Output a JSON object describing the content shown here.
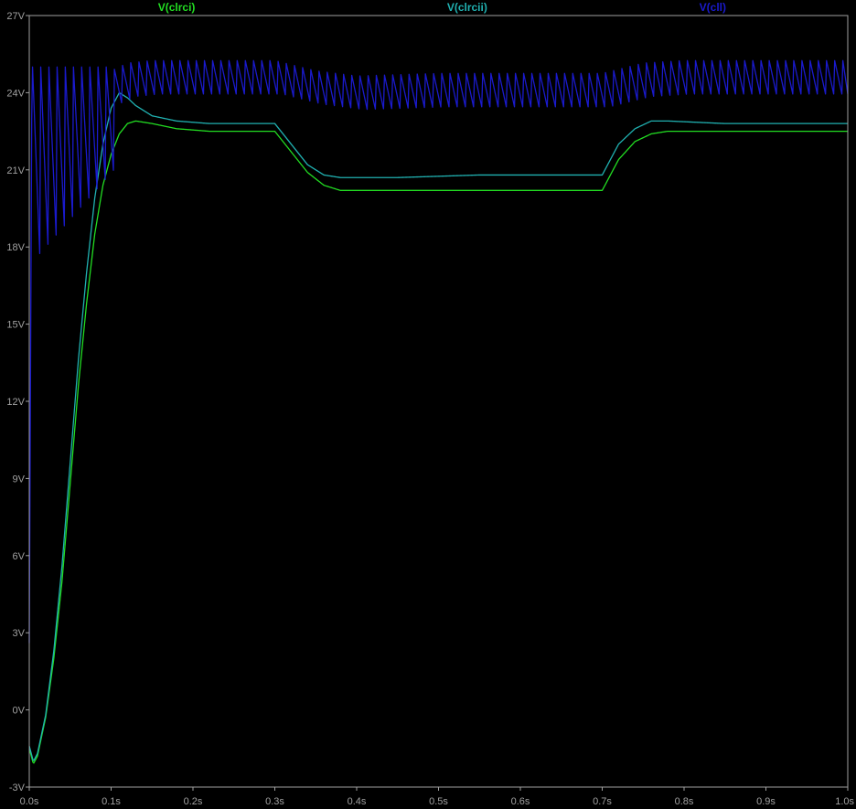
{
  "chart_data": {
    "type": "line",
    "xlim": [
      0.0,
      1.0
    ],
    "ylim": [
      -3,
      27
    ],
    "x_ticks": [
      "0.0s",
      "0.1s",
      "0.2s",
      "0.3s",
      "0.4s",
      "0.5s",
      "0.6s",
      "0.7s",
      "0.8s",
      "0.9s",
      "1.0s"
    ],
    "y_ticks": [
      "-3V",
      "0V",
      "3V",
      "6V",
      "9V",
      "12V",
      "15V",
      "18V",
      "21V",
      "24V",
      "27V"
    ],
    "grid": false,
    "legend_position": "top",
    "series": [
      {
        "name": "V(clrci)",
        "color": "#22dd22",
        "points": [
          [
            0.0,
            -1.5
          ],
          [
            0.005,
            -2.1
          ],
          [
            0.01,
            -1.8
          ],
          [
            0.02,
            -0.3
          ],
          [
            0.03,
            2.0
          ],
          [
            0.04,
            5.0
          ],
          [
            0.05,
            8.8
          ],
          [
            0.06,
            12.6
          ],
          [
            0.07,
            15.8
          ],
          [
            0.08,
            18.5
          ],
          [
            0.09,
            20.4
          ],
          [
            0.1,
            21.6
          ],
          [
            0.11,
            22.4
          ],
          [
            0.12,
            22.8
          ],
          [
            0.13,
            22.9
          ],
          [
            0.15,
            22.8
          ],
          [
            0.18,
            22.6
          ],
          [
            0.22,
            22.5
          ],
          [
            0.3,
            22.5
          ],
          [
            0.32,
            21.7
          ],
          [
            0.34,
            20.9
          ],
          [
            0.36,
            20.4
          ],
          [
            0.38,
            20.2
          ],
          [
            0.45,
            20.2
          ],
          [
            0.55,
            20.2
          ],
          [
            0.7,
            20.2
          ],
          [
            0.72,
            21.4
          ],
          [
            0.74,
            22.1
          ],
          [
            0.76,
            22.4
          ],
          [
            0.78,
            22.5
          ],
          [
            0.85,
            22.5
          ],
          [
            1.0,
            22.5
          ]
        ]
      },
      {
        "name": "V(clrcii)",
        "color": "#20b0b0",
        "points": [
          [
            0.0,
            -1.4
          ],
          [
            0.005,
            -2.0
          ],
          [
            0.01,
            -1.7
          ],
          [
            0.02,
            -0.2
          ],
          [
            0.03,
            2.3
          ],
          [
            0.04,
            5.6
          ],
          [
            0.05,
            9.6
          ],
          [
            0.06,
            13.6
          ],
          [
            0.07,
            17.0
          ],
          [
            0.08,
            19.9
          ],
          [
            0.09,
            22.0
          ],
          [
            0.1,
            23.4
          ],
          [
            0.11,
            24.0
          ],
          [
            0.12,
            23.8
          ],
          [
            0.13,
            23.5
          ],
          [
            0.15,
            23.1
          ],
          [
            0.18,
            22.9
          ],
          [
            0.22,
            22.8
          ],
          [
            0.3,
            22.8
          ],
          [
            0.32,
            22.0
          ],
          [
            0.34,
            21.2
          ],
          [
            0.36,
            20.8
          ],
          [
            0.38,
            20.7
          ],
          [
            0.45,
            20.7
          ],
          [
            0.55,
            20.8
          ],
          [
            0.7,
            20.8
          ],
          [
            0.72,
            22.0
          ],
          [
            0.74,
            22.6
          ],
          [
            0.76,
            22.9
          ],
          [
            0.78,
            22.9
          ],
          [
            0.85,
            22.8
          ],
          [
            1.0,
            22.8
          ]
        ]
      },
      {
        "name": "V(cll)",
        "color": "#1a1acc",
        "ripple_period": 0.01,
        "points": [
          [
            0.0,
            2.6
          ],
          [
            0.003,
            23.0
          ],
          [
            0.006,
            25.0
          ],
          [
            0.01,
            24.0
          ],
          [
            0.02,
            23.5
          ],
          [
            0.03,
            21.8
          ],
          [
            0.04,
            21.2
          ],
          [
            0.05,
            22.4
          ],
          [
            0.06,
            23.0
          ],
          [
            0.07,
            23.4
          ],
          [
            0.08,
            23.8
          ],
          [
            0.09,
            24.0
          ],
          [
            0.1,
            24.2
          ],
          [
            0.12,
            24.5
          ],
          [
            0.15,
            24.6
          ],
          [
            0.2,
            24.6
          ],
          [
            0.3,
            24.6
          ],
          [
            0.35,
            24.2
          ],
          [
            0.4,
            24.0
          ],
          [
            0.5,
            24.1
          ],
          [
            0.6,
            24.1
          ],
          [
            0.7,
            24.1
          ],
          [
            0.75,
            24.5
          ],
          [
            0.8,
            24.6
          ],
          [
            0.9,
            24.6
          ],
          [
            1.0,
            24.6
          ]
        ]
      }
    ]
  }
}
